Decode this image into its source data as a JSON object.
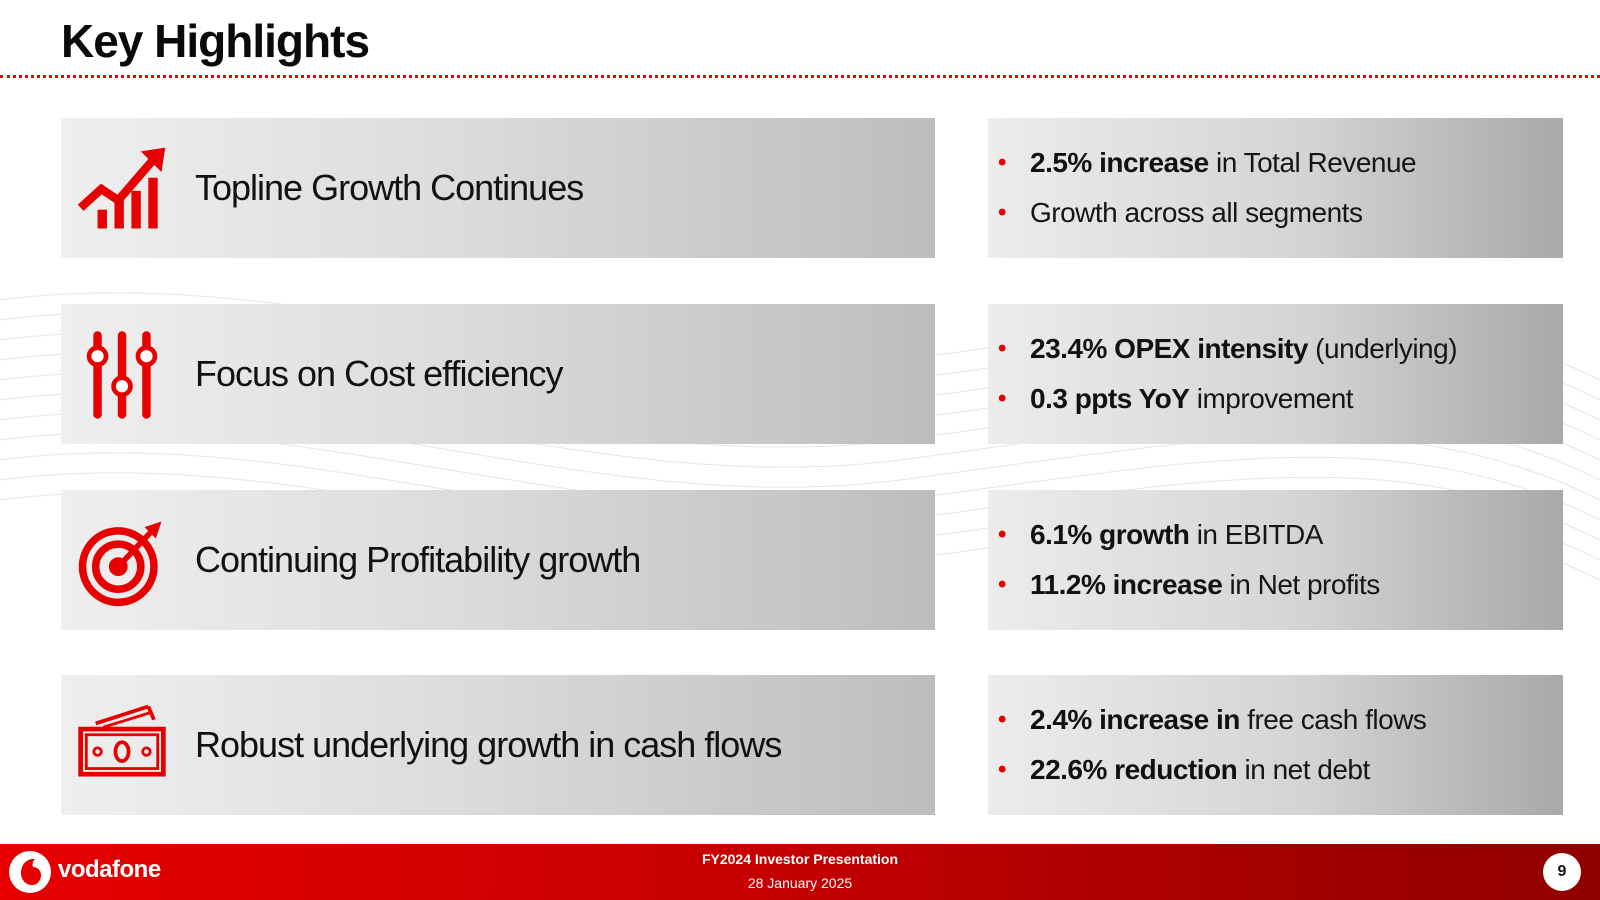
{
  "slide": {
    "title": "Key Highlights",
    "accent_color": "#e60000"
  },
  "highlights": [
    {
      "label": "Topline Growth Continues",
      "icon": "rising-bar-chart-icon",
      "points": [
        {
          "bold": "2.5% increase",
          "text": " in Total Revenue"
        },
        {
          "bold": "",
          "text": "Growth across all segments"
        }
      ]
    },
    {
      "label": "Focus on Cost efficiency",
      "icon": "sliders-icon",
      "points": [
        {
          "bold": "23.4% OPEX intensity",
          "text": " (underlying)"
        },
        {
          "bold": "0.3 ppts YoY",
          "text": " improvement"
        }
      ]
    },
    {
      "label": "Continuing Profitability growth",
      "icon": "target-icon",
      "points": [
        {
          "bold": "6.1% growth",
          "text": " in EBITDA"
        },
        {
          "bold": "11.2% increase",
          "text": " in Net profits"
        }
      ]
    },
    {
      "label": "Robust underlying growth in cash flows",
      "icon": "cash-icon",
      "points": [
        {
          "bold": "2.4% increase in",
          "text": " free cash flows"
        },
        {
          "bold": "22.6% reduction",
          "text": " in net debt"
        }
      ]
    }
  ],
  "footer": {
    "brand": "vodafone",
    "presentation": "FY2024 Investor Presentation",
    "date": "28 January 2025",
    "page_number": "9"
  }
}
